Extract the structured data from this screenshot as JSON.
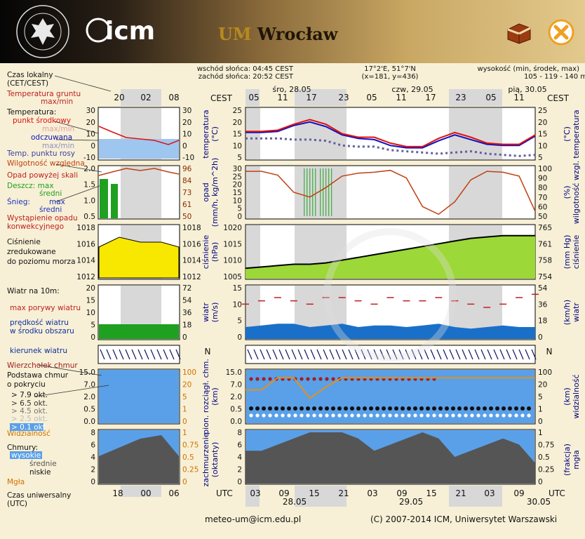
{
  "header": {
    "title_um": "UM",
    "title_city": "Wrocław",
    "uw_logo_text": "UNIWERSYTET WARSZAWSKI",
    "icm_logo_text": "icm"
  },
  "info": {
    "sunrise": "wschód słońca: 04:45 CEST",
    "sunset": "zachód słońca: 20:52 CEST",
    "coords": "17°2'E, 51°7'N",
    "grid": "(x=181, y=436)",
    "elevation_title": "wysokość (min, środek, max)",
    "elevation_values": "105 - 119 - 140 m"
  },
  "legend": {
    "local_time": "Czas lokalny",
    "local_time2": "(CET/CEST)",
    "ground_temp": "Temperatura gruntu",
    "ground_temp2": "max/min",
    "temperature": "Temperatura:",
    "center_point": "punkt środkowy",
    "maxmin1": "max/min",
    "averaged": "odczuwana",
    "maxmin2": "max/min",
    "dew": "Temp. punktu rosy",
    "humidity": "Wilgotność względna",
    "precip_scale": "Opad powyżej skali",
    "rain_max": "Deszcz: max",
    "rain_mean": "średni",
    "snow_max_l": "Śnieg:",
    "snow_max": "max",
    "snow_mean": "średni",
    "convective": "Wystąpienie opadu",
    "convective2": "konwekcyjnego",
    "pressure": "Ciśnienie",
    "pressure2": "zredukowane",
    "pressure3": "do poziomu morza",
    "wind_at": "Wiatr na 10m:",
    "gusts": "max porywy wiatru",
    "wind_speed": "prędkość wiatru",
    "wind_speed2": "w środku obszaru",
    "wind_dir": "kierunek wiatru",
    "cloud_top": "Wierzchołek chmur",
    "cloud_base": "Podstawa chmur",
    "cloud_base2": "o pokryciu",
    "okt1": "> 7.9 okt.",
    "okt2": "> 6.5 okt.",
    "okt3": "> 4.5 okt.",
    "okt4": "> 2.5 okt.",
    "okt5": "> 0.1 okt.",
    "visibility": "Widzialność",
    "clouds": "Chmury:",
    "high": "wysokie",
    "mid": "średnie",
    "low": "niskie",
    "fog": "Mgła",
    "utc": "Czas uniwersalny",
    "utc2": "(UTC)"
  },
  "mini_axes": {
    "top_hours": [
      "20",
      "02",
      "08"
    ],
    "bottom_hours": [
      "18",
      "00",
      "06"
    ],
    "temp_l": [
      "30",
      "20",
      "10",
      "0",
      "-10"
    ],
    "temp_r": [
      "30",
      "20",
      "10",
      "0",
      "-10"
    ],
    "precip_l": [
      "2.0",
      "1.5",
      "1.0",
      "0.5"
    ],
    "hum_r": [
      "96",
      "84",
      "73",
      "61",
      "50"
    ],
    "press_l": [
      "1018",
      "1016",
      "1014",
      "1012"
    ],
    "press_r": [
      "1018",
      "1016",
      "1014",
      "1012"
    ],
    "wind_l": [
      "20",
      "15",
      "10",
      "5",
      "0"
    ],
    "wind_r": [
      "72",
      "54",
      "36",
      "18",
      "0"
    ],
    "cloud_l": [
      "15.0",
      "7.0",
      "2.0",
      "0.5",
      "0.0"
    ],
    "vis_r": [
      "100",
      "20",
      "5",
      "1",
      "0"
    ],
    "oct_l": [
      "8",
      "6",
      "4",
      "2",
      "0"
    ],
    "fog_r": [
      "1",
      "0.75",
      "0.5",
      "0.25",
      "0"
    ]
  },
  "main_axes": {
    "cest": "CEST",
    "utc": "UTC",
    "days_top": [
      "śro, 28.05",
      "czw, 29.05",
      "pią, 30.05"
    ],
    "hours_top": [
      "05",
      "11",
      "17",
      "23",
      "05",
      "11",
      "17",
      "23",
      "05",
      "11"
    ],
    "hours_bottom": [
      "03",
      "09",
      "15",
      "21",
      "03",
      "09",
      "15",
      "21",
      "03",
      "09"
    ],
    "days_bottom": [
      "28.05",
      "29.05",
      "30.05"
    ],
    "temp_ticks": [
      "25",
      "20",
      "15",
      "10",
      "5"
    ],
    "precip_ticks": [
      "30",
      "25",
      "20",
      "15",
      "10",
      "5",
      "0"
    ],
    "hum_ticks": [
      "100",
      "90",
      "80",
      "70",
      "60",
      "50"
    ],
    "press_ticks": [
      "1020",
      "1015",
      "1010",
      "1005"
    ],
    "press_mmhg": [
      "765",
      "761",
      "758",
      "754"
    ],
    "wind_ticks": [
      "15",
      "10",
      "5",
      "0"
    ],
    "wind_kmh": [
      "54",
      "36",
      "18",
      "0"
    ],
    "cloud_ticks": [
      "15.0",
      "7.0",
      "2.0",
      "0.5",
      "0.0"
    ],
    "vis_ticks": [
      "100",
      "20",
      "5",
      "1",
      "0"
    ],
    "oct_ticks": [
      "8",
      "6",
      "4",
      "2",
      "0"
    ],
    "fog_ticks": [
      "1",
      "0.75",
      "0.5",
      "0.25",
      "0"
    ],
    "ylab_temp": "temperatura",
    "ylab_temp_unit": "(°C)",
    "ylab_precip": "opad",
    "ylab_precip_unit": "(mm/h, kg/m^2h)",
    "ylab_hum": "wilgotność wzgl.",
    "ylab_hum_unit": "(%)",
    "ylab_press": "ciśnienie",
    "ylab_press_unit_l": "(hPa)",
    "ylab_press_unit_r": "(mm Hg)",
    "ylab_wind": "wiatr",
    "ylab_wind_unit_l": "(m/s)",
    "ylab_wind_unit_r": "(km/h)",
    "ylab_cloud": "pion. rozciągł. chm.",
    "ylab_cloud_unit": "(km)",
    "ylab_vis": "widzialność",
    "ylab_vis_unit": "(km)",
    "ylab_oct": "zachmurzenie",
    "ylab_oct_unit": "(oktanty)",
    "ylab_fog": "mgła",
    "ylab_fog_unit": "(frakcja)",
    "compass": "N"
  },
  "chart_data": {
    "type": "line",
    "x_utc_hours": [
      0,
      3,
      6,
      9,
      12,
      15,
      18,
      21,
      24,
      27,
      30,
      33,
      36,
      39,
      42,
      45,
      48,
      51,
      54
    ],
    "temperature_center": [
      16,
      16,
      16.5,
      19,
      21,
      19,
      15,
      13.5,
      13.5,
      11,
      9.5,
      9.5,
      13,
      15.5,
      13.5,
      11,
      10.5,
      10.5,
      14.5
    ],
    "temperature_perceived": [
      15.5,
      15.5,
      16,
      18.5,
      20,
      18,
      14.5,
      13,
      12.5,
      10,
      9,
      9,
      12,
      14.5,
      12.5,
      10.5,
      10,
      10,
      14
    ],
    "dew_point": [
      13,
      13,
      13,
      12.5,
      12.5,
      12,
      10,
      9.5,
      9.5,
      8,
      7.5,
      7,
      6.5,
      7,
      7.5,
      6.5,
      6,
      5.5,
      6
    ],
    "humidity": [
      97,
      97,
      93,
      75,
      70,
      80,
      92,
      95,
      96,
      98,
      90,
      60,
      52,
      65,
      88,
      97,
      96,
      92,
      55
    ],
    "precip_max": [
      0,
      0,
      0,
      0,
      30,
      30,
      0,
      0,
      0,
      0,
      0,
      0,
      0,
      0,
      0,
      0,
      0,
      0,
      0
    ],
    "pressure_hpa": [
      1006,
      1006.5,
      1007,
      1007.5,
      1007.5,
      1008,
      1009,
      1010,
      1011,
      1012,
      1013,
      1014,
      1015,
      1016,
      1017,
      1017.5,
      1018,
      1018,
      1018
    ],
    "wind_speed": [
      3,
      3.5,
      4,
      4,
      3,
      3.5,
      4,
      3,
      3.5,
      3.5,
      3,
      3.5,
      4,
      3,
      2.5,
      3,
      3.5,
      3,
      3
    ],
    "wind_gusts": [
      10,
      11,
      12,
      11,
      10,
      12,
      12,
      11,
      10,
      12,
      11,
      11,
      12,
      11,
      10,
      9,
      10,
      12,
      13
    ],
    "visibility_km": [
      4,
      4,
      10,
      10,
      2,
      5,
      10,
      10,
      10,
      10,
      10,
      10,
      10,
      10,
      10,
      10,
      10,
      10,
      10
    ],
    "total_cloud_okt": [
      5,
      5,
      6,
      7,
      8,
      8,
      8,
      7,
      5,
      6,
      7,
      8,
      7,
      4,
      5,
      6,
      7,
      6,
      3
    ]
  }
}
